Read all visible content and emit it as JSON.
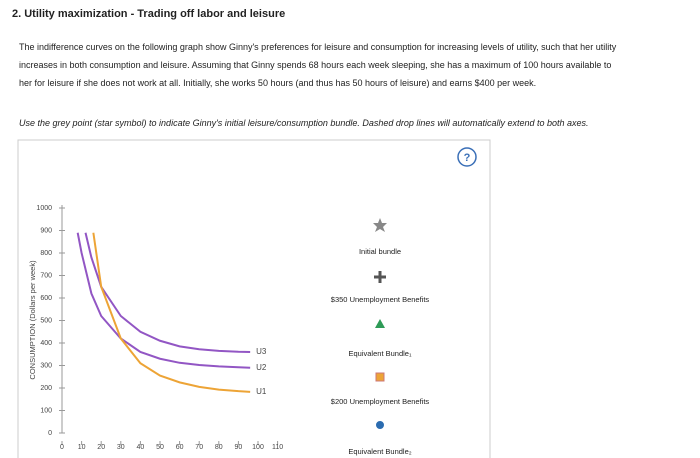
{
  "header": {
    "title": "2. Utility maximization - Trading off labor and leisure"
  },
  "body": {
    "paragraph": [
      "The indifference curves on the following graph show Ginny's preferences for leisure and consumption for increasing levels of utility, such that her utility",
      "increases in both consumption and leisure. Assuming that Ginny spends 68 hours each week sleeping, she has a maximum of 100 hours available to",
      "her for leisure if she does not work at all. Initially, she works 50 hours (and thus has 50 hours of leisure) and earns $400 per week."
    ],
    "instruction": "Use the grey point (star symbol) to indicate Ginny's initial leisure/consumption bundle. Dashed drop lines will automatically extend to both axes."
  },
  "help": "?",
  "chart_data": {
    "type": "line",
    "ylabel": "CONSUMPTION (Dollars per week)",
    "xlim": [
      0,
      110
    ],
    "ylim": [
      0,
      1000
    ],
    "xticks": [
      0,
      10,
      20,
      30,
      40,
      50,
      60,
      70,
      80,
      90,
      100,
      110
    ],
    "yticks": [
      0,
      100,
      200,
      300,
      400,
      500,
      600,
      700,
      800,
      900,
      1000
    ],
    "series": [
      {
        "name": "U3",
        "color": "#9256c4",
        "x": [
          12,
          15,
          20,
          30,
          40,
          50,
          60,
          70,
          80,
          90,
          96
        ],
        "values": [
          890,
          780,
          650,
          520,
          450,
          410,
          385,
          372,
          365,
          361,
          360
        ]
      },
      {
        "name": "U2",
        "color": "#9256c4",
        "x": [
          8,
          10,
          15,
          20,
          30,
          40,
          50,
          60,
          70,
          80,
          90,
          96
        ],
        "values": [
          890,
          800,
          620,
          520,
          420,
          360,
          330,
          312,
          302,
          296,
          292,
          290
        ]
      },
      {
        "name": "U1",
        "color": "#eda436",
        "x": [
          16,
          20,
          30,
          40,
          50,
          60,
          70,
          80,
          90,
          96
        ],
        "values": [
          890,
          650,
          420,
          310,
          255,
          225,
          205,
          193,
          186,
          183
        ]
      }
    ],
    "palette": [
      "Initial bundle",
      "$350 Unemployment Benefits",
      "Equivalent Bundle₁",
      "$200 Unemployment Benefits",
      "Equivalent Bundle₂"
    ]
  }
}
